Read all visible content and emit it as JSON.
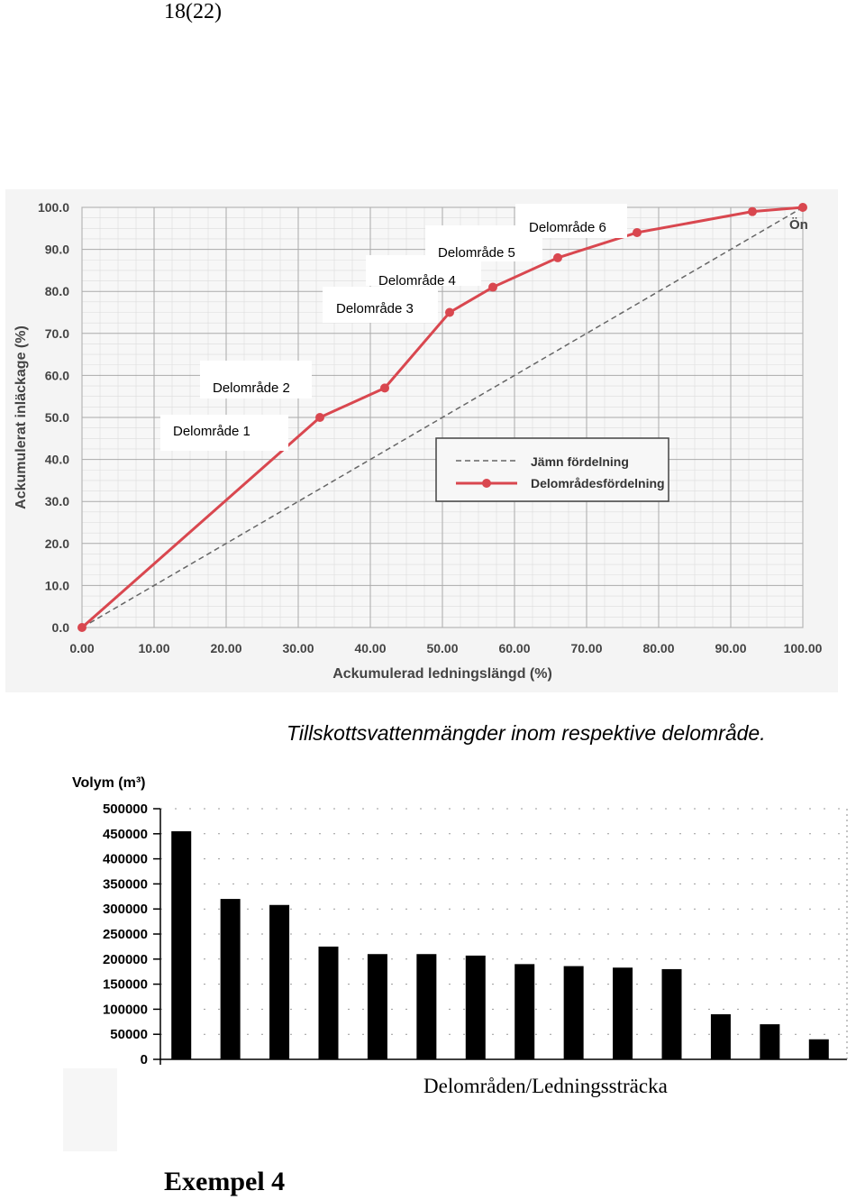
{
  "page_number": "18(22)",
  "caption": "Tillskottsvattenmängder inom respektive delområde.",
  "example_heading": "Exempel 4",
  "colors": {
    "red_series": "#d9474f",
    "dashed_series": "#666666",
    "bars": "#000000",
    "grid": "#aaaaaa"
  },
  "chart_data": [
    {
      "type": "line",
      "xlabel": "Ackumulerad ledningslängd (%)",
      "ylabel": "Ackumulerat inläckage (%)",
      "xlim": [
        0,
        100
      ],
      "ylim": [
        0,
        100
      ],
      "xticks": [
        "0.00",
        "10.00",
        "20.00",
        "30.00",
        "40.00",
        "50.00",
        "60.00",
        "70.00",
        "80.00",
        "90.00",
        "100.00"
      ],
      "yticks": [
        "0.0",
        "10.0",
        "20.0",
        "30.0",
        "40.0",
        "50.0",
        "60.0",
        "70.0",
        "80.0",
        "90.0",
        "100.0"
      ],
      "grid": true,
      "legend_position": "center-right",
      "series": [
        {
          "name": "Jämn fördelning",
          "style": "dashed",
          "x": [
            0,
            100
          ],
          "y": [
            0,
            100
          ]
        },
        {
          "name": "Delområdesfördelning",
          "style": "line-markers",
          "x": [
            0,
            33,
            42,
            51,
            57,
            66,
            77,
            93,
            100
          ],
          "y": [
            0,
            50,
            57,
            75,
            81,
            88,
            94,
            99,
            100
          ]
        }
      ],
      "annotations": [
        "Delområde 1",
        "Delområde 2",
        "Delområde 3",
        "Delområde 4",
        "Delområde 5",
        "Delområde 6",
        "Ön"
      ]
    },
    {
      "type": "bar",
      "ylabel": "Volym (m³)",
      "xlabel": "Delområden/Ledningssträcka",
      "ylim": [
        0,
        500000
      ],
      "yticks": [
        "500000",
        "450000",
        "400000",
        "350000",
        "300000",
        "250000",
        "200000",
        "150000",
        "100000",
        "50000",
        "0"
      ],
      "values": [
        455000,
        320000,
        308000,
        225000,
        210000,
        210000,
        207000,
        190000,
        186000,
        183000,
        180000,
        90000,
        70000,
        40000
      ]
    }
  ]
}
